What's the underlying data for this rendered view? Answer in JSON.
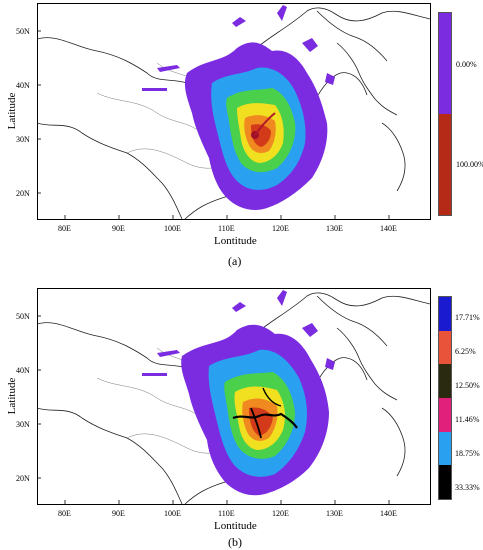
{
  "panels": [
    {
      "caption": "(a)",
      "ylabel": "Latitude",
      "xlabel": "Lontitude",
      "lat_ticks": [
        "50N",
        "40N",
        "30N",
        "20N"
      ],
      "lon_ticks": [
        "80E",
        "90E",
        "100E",
        "110E",
        "120E",
        "130E",
        "140E"
      ],
      "legend": [
        {
          "label": "0.00%",
          "color": "#7b2be0"
        },
        {
          "label": "100.00%",
          "color": "#b52a16"
        }
      ]
    },
    {
      "caption": "(b)",
      "ylabel": "Latitude",
      "xlabel": "Lontitude",
      "lat_ticks": [
        "50N",
        "40N",
        "30N",
        "20N"
      ],
      "lon_ticks": [
        "80E",
        "90E",
        "100E",
        "110E",
        "120E",
        "130E",
        "140E"
      ],
      "legend": [
        {
          "label": "17.71%",
          "color": "#1a1ad0"
        },
        {
          "label": "6.25%",
          "color": "#e8533a"
        },
        {
          "label": "12.50%",
          "color": "#2a2a10"
        },
        {
          "label": "11.46%",
          "color": "#e0207a"
        },
        {
          "label": "18.75%",
          "color": "#2aa0f0"
        },
        {
          "label": "33.33%",
          "color": "#000000"
        }
      ]
    }
  ]
}
